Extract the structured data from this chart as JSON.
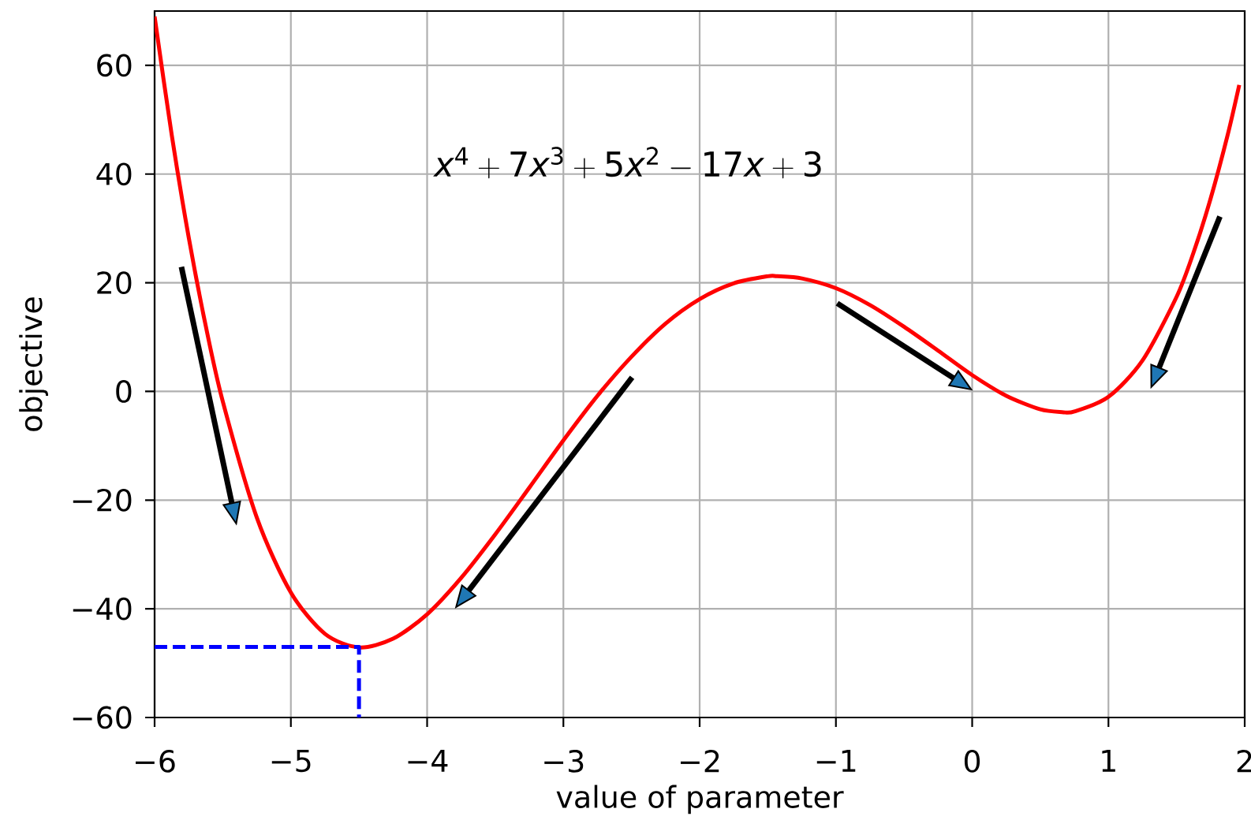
{
  "chart_data": {
    "type": "line",
    "xlabel": "value of parameter",
    "ylabel": "objective",
    "annotations": [
      "x^4 + 7x^3 + 5x^2 - 17x + 3"
    ],
    "xlim": [
      -6,
      2
    ],
    "ylim": [
      -60,
      70
    ],
    "xticks": [
      {
        "value": -6,
        "label": "−6"
      },
      {
        "value": -5,
        "label": "−5"
      },
      {
        "value": -4,
        "label": "−4"
      },
      {
        "value": -3,
        "label": "−3"
      },
      {
        "value": -2,
        "label": "−2"
      },
      {
        "value": -1,
        "label": "−1"
      },
      0,
      1,
      2
    ],
    "yticks": [
      {
        "value": -60,
        "label": "−60"
      },
      {
        "value": -40,
        "label": "−40"
      },
      {
        "value": -20,
        "label": "−20"
      },
      0,
      20,
      40,
      60
    ],
    "grid": true,
    "series": [
      {
        "color": "#ff0000",
        "x": [
          -6,
          -5.875,
          -5.75,
          -5.625,
          -5.5,
          -5.25,
          -5,
          -4.75,
          -4.5,
          -4.25,
          -4,
          -3.75,
          -3.5,
          -3.25,
          -3,
          -2.75,
          -2.5,
          -2.25,
          -2,
          -1.75,
          -1.5,
          -1.43,
          -1.25,
          -1,
          -0.75,
          -0.5,
          -0.25,
          0,
          0.25,
          0.5,
          0.66,
          0.75,
          1,
          1.25,
          1.5,
          1.625,
          1.75,
          1.875,
          1.96
        ],
        "values": [
          69,
          47.3,
          28.4,
          12.1,
          -1.8,
          -23.2,
          -37,
          -44.6,
          -47.1,
          -45.5,
          -41,
          -34.3,
          -26.3,
          -17.7,
          -9,
          -0.8,
          6.4,
          12.5,
          17,
          19.9,
          21.2,
          21.2,
          20.8,
          19,
          15.9,
          11.9,
          7.5,
          3,
          -0.8,
          -3.3,
          -3.8,
          -3.7,
          -1,
          5.7,
          17.4,
          25.6,
          35.5,
          47.2,
          56.4
        ]
      },
      {
        "color": "#0000ff",
        "line_style": "dashed",
        "x": [
          -6,
          -4.5,
          -4.5
        ],
        "values": [
          -47,
          -47,
          -60
        ]
      }
    ]
  }
}
